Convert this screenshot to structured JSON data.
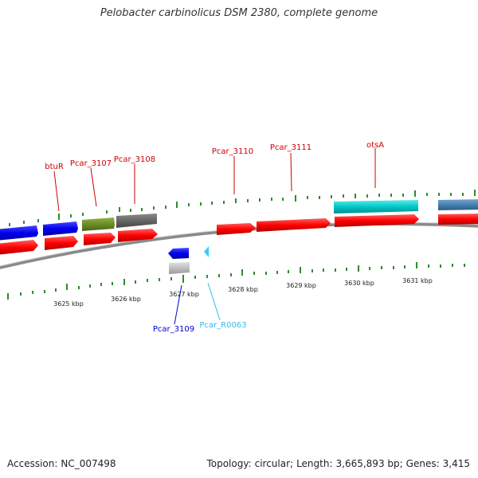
{
  "title": "Pelobacter carbinolicus DSM 2380, complete genome",
  "footer": {
    "accession_label": "Accession:",
    "accession": "NC_007498",
    "topology_label": "Topology:",
    "topology": "circular;",
    "length_label": "Length:",
    "length": "3,665,893 bp;",
    "genes_label": "Genes:",
    "genes": "3,415"
  },
  "colors": {
    "backbone": "#8c8c8c",
    "tick": "#2e8b2e",
    "cds": "#ff0000",
    "gene_blue": "#0000ee",
    "gene_olive": "#6b8e23",
    "gene_grey": "#666666",
    "gene_cyan": "#00c8c8",
    "gene_steelblue": "#4682b4",
    "rna_lightblue": "#33ccff",
    "label_red": "#cc0000",
    "label_blue": "#0000cc",
    "label_lightblue": "#33bbee"
  },
  "scale_labels": [
    "3625 kbp",
    "3626 kbp",
    "3627 kbp",
    "3628 kbp",
    "3629 kbp",
    "3630 kbp",
    "3631 kbp"
  ],
  "gene_labels": [
    {
      "text": "btuR",
      "color": "label_red"
    },
    {
      "text": "Pcar_3107",
      "color": "label_red"
    },
    {
      "text": "Pcar_3108",
      "color": "label_red"
    },
    {
      "text": "Pcar_3110",
      "color": "label_red"
    },
    {
      "text": "Pcar_3111",
      "color": "label_red"
    },
    {
      "text": "otsA",
      "color": "label_red"
    },
    {
      "text": "Pcar_3109",
      "color": "label_blue"
    },
    {
      "text": "Pcar_R0063",
      "color": "label_lightblue"
    }
  ]
}
